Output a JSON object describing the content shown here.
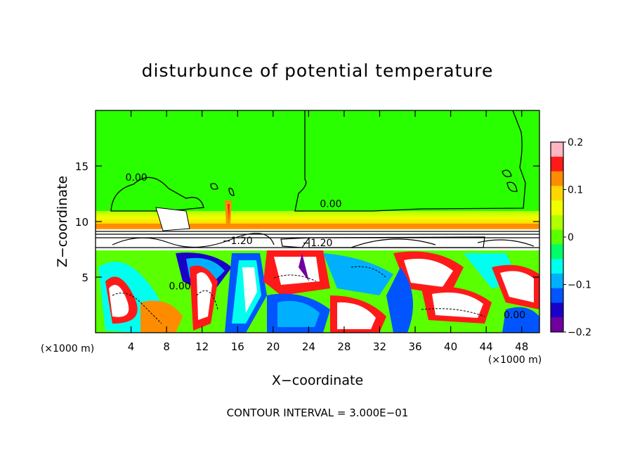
{
  "chart_data": {
    "type": "heatmap",
    "title": "disturbunce of potential temperature",
    "xlabel": "X−coordinate",
    "ylabel": "Z−coordinate",
    "x_unit_left": "(×1000 m)",
    "x_unit_right": "(×1000 m)",
    "xlim": [
      0,
      50
    ],
    "ylim": [
      0,
      20
    ],
    "x_ticks": [
      4,
      8,
      12,
      16,
      20,
      24,
      28,
      32,
      36,
      40,
      44,
      48
    ],
    "x_tick_labels": [
      "4",
      "8",
      "12",
      "16",
      "20",
      "24",
      "28",
      "32",
      "36",
      "40",
      "44",
      "48"
    ],
    "y_ticks": [
      5,
      10,
      15
    ],
    "y_tick_labels": [
      "5",
      "10",
      "15"
    ],
    "colorbar": {
      "range": [
        -0.2,
        0.2
      ],
      "ticks": [
        0.2,
        0.1,
        0,
        -0.1,
        -0.2
      ],
      "tick_labels": [
        "0.2",
        "0.1",
        "0",
        "−0.1",
        "−0.2"
      ],
      "colors": [
        "#ffb6c1",
        "#ff1a1a",
        "#ff8c00",
        "#ffd700",
        "#f0ff00",
        "#b0ff00",
        "#5aff00",
        "#00ff66",
        "#00ffee",
        "#00b0ff",
        "#0055ff",
        "#1a00c8",
        "#7000a0"
      ]
    },
    "contour_labels": [
      {
        "text": "0.00",
        "x": 4.6,
        "z": 14.0
      },
      {
        "text": "0.00",
        "x": 26.5,
        "z": 11.6
      },
      {
        "text": "0.00",
        "x": 9.5,
        "z": 4.2
      },
      {
        "text": "0.00",
        "x": 47.2,
        "z": 1.6
      },
      {
        "text": "−1.20",
        "x": 16.0,
        "z": 8.3
      },
      {
        "text": "−1.20",
        "x": 25.0,
        "z": 8.1
      }
    ],
    "footer": "CONTOUR INTERVAL =  3.000E−01"
  }
}
